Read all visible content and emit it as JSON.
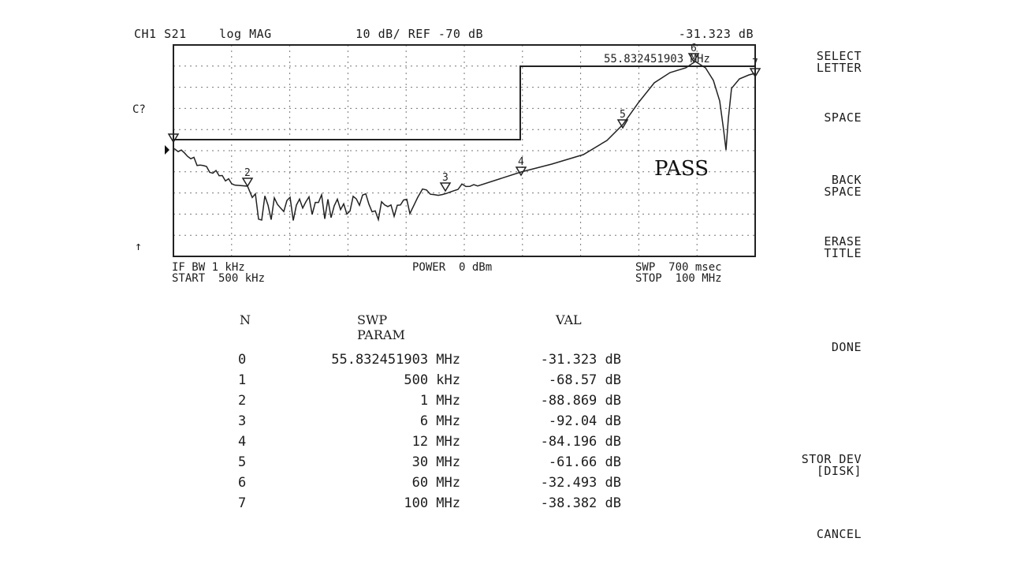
{
  "header": {
    "channel": "CH1 S21",
    "format": "log MAG",
    "scale": "10 dB/ REF -70 dB",
    "marker_value": "-31.323 dB"
  },
  "side": {
    "c_label": "C?",
    "arrow": "↑"
  },
  "plot": {
    "marker_freq_text": "55.832451903 MHz",
    "pass_label": "PASS",
    "marker_labels": [
      "2",
      "3",
      "4",
      "5",
      "6",
      "7"
    ]
  },
  "footer": {
    "ifbw": "IF BW 1 kHz",
    "start": "START  500 kHz",
    "power": "POWER  0 dBm",
    "swp": "SWP  700 msec",
    "stop": "STOP  100 MHz"
  },
  "softkeys": {
    "select_letter": [
      "SELECT",
      "LETTER"
    ],
    "space": "SPACE",
    "back_space": [
      "BACK",
      "SPACE"
    ],
    "erase_title": [
      "ERASE",
      "TITLE"
    ],
    "done": "DONE",
    "stor_dev": [
      "STOR DEV",
      "[DISK]"
    ],
    "cancel": "CANCEL"
  },
  "table": {
    "headers": {
      "n": "N",
      "param": "SWP PARAM",
      "val": "VAL"
    },
    "rows": [
      {
        "n": "0",
        "param": "55.832451903 MHz",
        "val": "-31.323 dB"
      },
      {
        "n": "1",
        "param": "500 kHz",
        "val": "-68.57 dB"
      },
      {
        "n": "2",
        "param": "1 MHz",
        "val": "-88.869 dB"
      },
      {
        "n": "3",
        "param": "6 MHz",
        "val": "-92.04 dB"
      },
      {
        "n": "4",
        "param": "12 MHz",
        "val": "-84.196 dB"
      },
      {
        "n": "5",
        "param": "30 MHz",
        "val": "-61.66 dB"
      },
      {
        "n": "6",
        "param": "60 MHz",
        "val": "-32.493 dB"
      },
      {
        "n": "7",
        "param": "100 MHz",
        "val": "-38.382 dB"
      }
    ]
  }
}
